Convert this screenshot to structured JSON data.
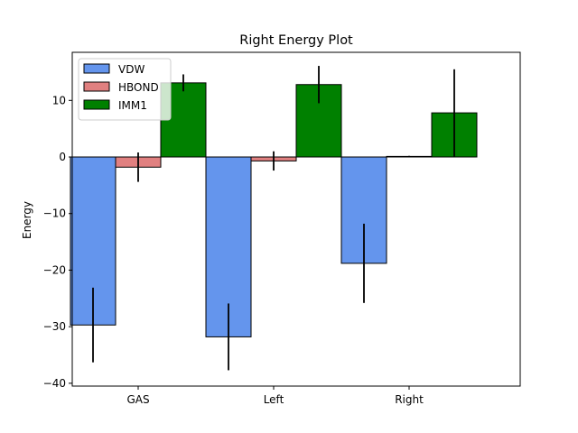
{
  "chart_data": {
    "type": "bar",
    "title": "Right Energy Plot",
    "xlabel": "",
    "ylabel": "Energy",
    "categories": [
      "GAS",
      "Left",
      "Right"
    ],
    "ylim": [
      -40.5,
      18.5
    ],
    "yticks": [
      -40,
      -30,
      -20,
      -10,
      0,
      10
    ],
    "grid": false,
    "legend_position": "top-left",
    "series": [
      {
        "name": "VDW",
        "color": "#6495ED",
        "values": [
          -29.7,
          -31.8,
          -18.8
        ],
        "errors": [
          6.6,
          5.9,
          7.0
        ]
      },
      {
        "name": "HBOND",
        "color": "#E08080",
        "values": [
          -1.8,
          -0.7,
          0.1
        ],
        "errors": [
          2.6,
          1.7,
          0.1
        ]
      },
      {
        "name": "IMM1",
        "color": "#008000",
        "values": [
          13.1,
          12.8,
          7.8
        ],
        "errors": [
          1.5,
          3.3,
          7.7
        ]
      }
    ]
  }
}
